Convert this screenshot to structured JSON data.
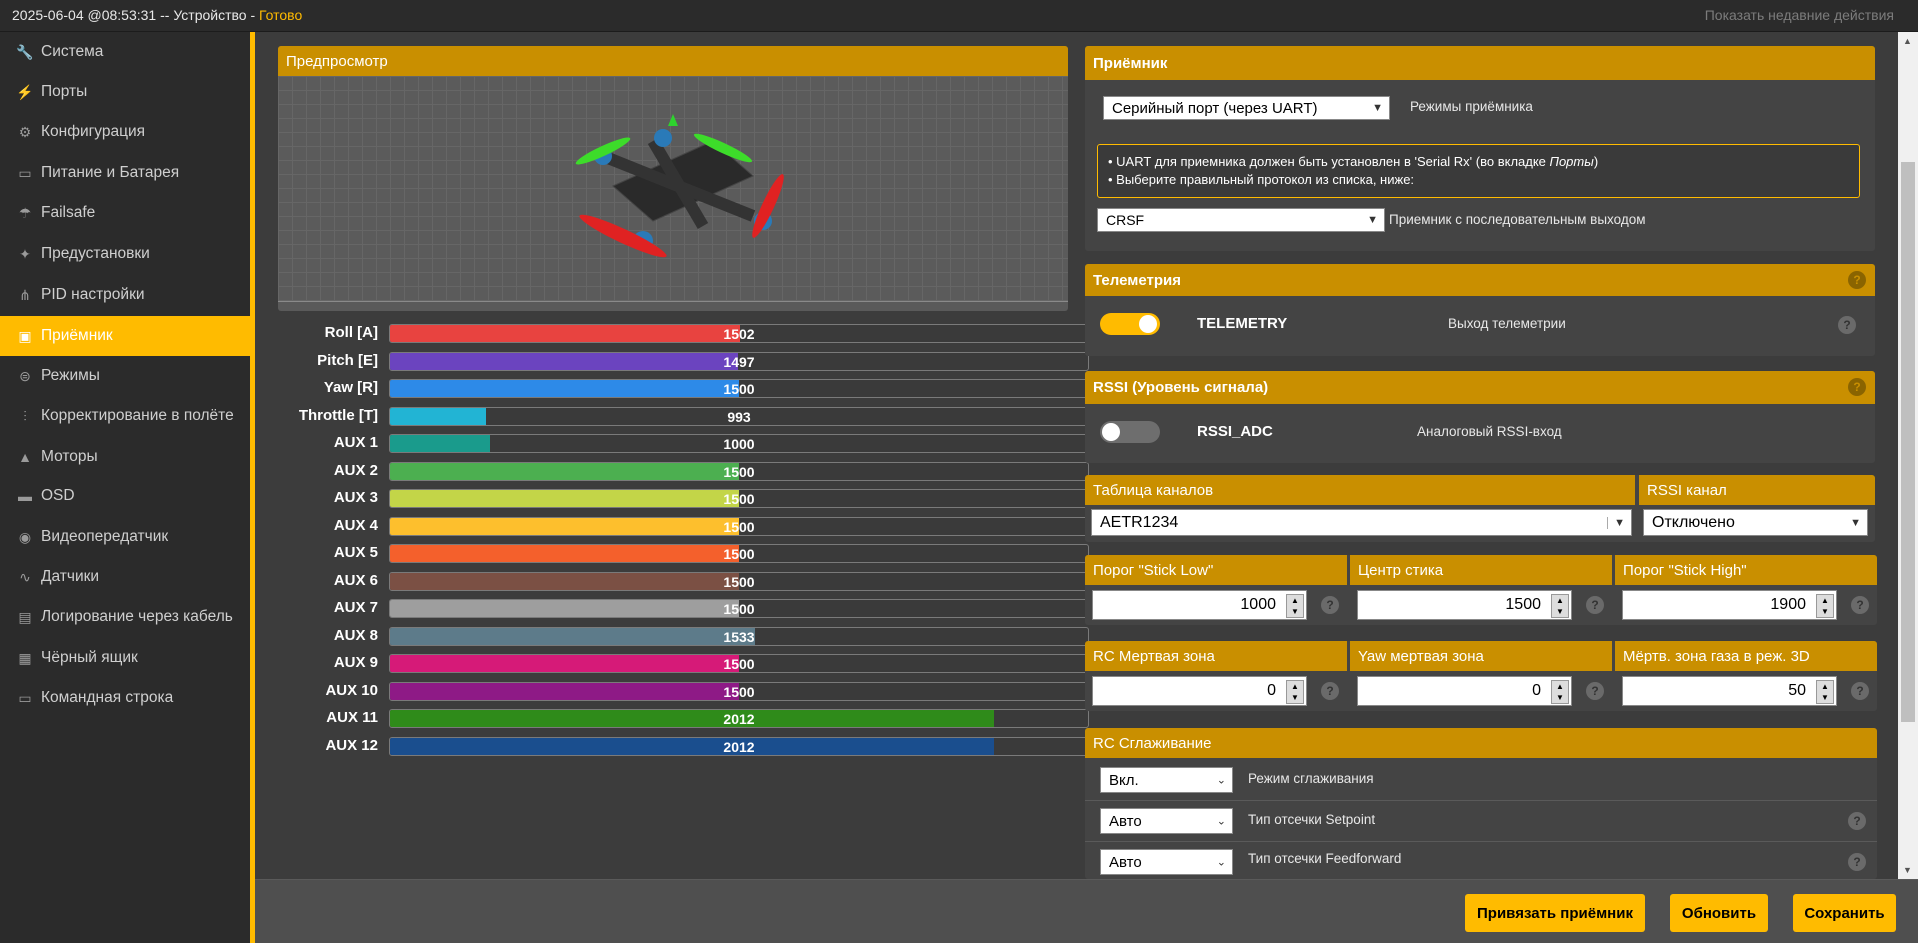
{
  "topbar": {
    "date": "2025-06-04 @08:53:31",
    "sep": " -- Устройство - ",
    "status": "Готово",
    "recent": "Показать недавние действия"
  },
  "colors": {
    "accent": "#ffbb00",
    "header": "#c98f00",
    "sidebar": "#2b2b2b",
    "content": "#3c3c3c"
  },
  "sidebar": {
    "items": [
      {
        "label": "Система",
        "icon": "wrench-icon",
        "glyph": "🔧"
      },
      {
        "label": "Порты",
        "icon": "plug-icon",
        "glyph": "⚡"
      },
      {
        "label": "Конфигурация",
        "icon": "gear-icon",
        "glyph": "⚙"
      },
      {
        "label": "Питание и Батарея",
        "icon": "battery-icon",
        "glyph": "▭"
      },
      {
        "label": "Failsafe",
        "icon": "parachute-icon",
        "glyph": "☂"
      },
      {
        "label": "Предустановки",
        "icon": "wand-icon",
        "glyph": "✦"
      },
      {
        "label": "PID настройки",
        "icon": "sitemap-icon",
        "glyph": "⋔"
      },
      {
        "label": "Приёмник",
        "icon": "receiver-icon",
        "glyph": "▣",
        "active": true
      },
      {
        "label": "Режимы",
        "icon": "toggle-icon",
        "glyph": "⊜"
      },
      {
        "label": "Корректирование в полёте",
        "icon": "sliders-icon",
        "glyph": "⫶"
      },
      {
        "label": "Моторы",
        "icon": "motor-icon",
        "glyph": "▲"
      },
      {
        "label": "OSD",
        "icon": "osd-icon",
        "glyph": "▬"
      },
      {
        "label": "Видеопередатчик",
        "icon": "broadcast-icon",
        "glyph": "◉"
      },
      {
        "label": "Датчики",
        "icon": "pulse-icon",
        "glyph": "∿"
      },
      {
        "label": "Логирование через кабель",
        "icon": "log-icon",
        "glyph": "▤"
      },
      {
        "label": "Чёрный ящик",
        "icon": "blackbox-icon",
        "glyph": "▦"
      },
      {
        "label": "Командная строка",
        "icon": "terminal-icon",
        "glyph": "▭"
      }
    ]
  },
  "preview": {
    "title": "Предпросмотр"
  },
  "channels": [
    {
      "name": "Roll [A]",
      "value": 1502,
      "color": "#e84340"
    },
    {
      "name": "Pitch [E]",
      "value": 1497,
      "color": "#6b44bf"
    },
    {
      "name": "Yaw [R]",
      "value": 1500,
      "color": "#2d8ae8"
    },
    {
      "name": "Throttle [T]",
      "value": 993,
      "color": "#22b4d4"
    },
    {
      "name": "AUX 1",
      "value": 1000,
      "color": "#1a9b8c"
    },
    {
      "name": "AUX 2",
      "value": 1500,
      "color": "#4caf50"
    },
    {
      "name": "AUX 3",
      "value": 1500,
      "color": "#c3d548"
    },
    {
      "name": "AUX 4",
      "value": 1500,
      "color": "#fdbf2d"
    },
    {
      "name": "AUX 5",
      "value": 1500,
      "color": "#f4602c"
    },
    {
      "name": "AUX 6",
      "value": 1500,
      "color": "#7b5044"
    },
    {
      "name": "AUX 7",
      "value": 1500,
      "color": "#9e9e9e"
    },
    {
      "name": "AUX 8",
      "value": 1533,
      "color": "#5d7b8a"
    },
    {
      "name": "AUX 9",
      "value": 1500,
      "color": "#d61a78"
    },
    {
      "name": "AUX 10",
      "value": 1500,
      "color": "#8e1a86"
    },
    {
      "name": "AUX 11",
      "value": 2012,
      "color": "#2f8b1a"
    },
    {
      "name": "AUX 12",
      "value": 2012,
      "color": "#1a4e8e"
    }
  ],
  "receiver": {
    "title": "Приёмник",
    "mode_value": "Серийный порт (через UART)",
    "mode_label": "Режимы приёмника",
    "note1_pre": "• UART для приемника должен быть установлен в 'Serial Rx' (во вкладке ",
    "note1_em": "Порты",
    "note1_post": ")",
    "note2": "• Выберите правильный протокол из списка, ниже:",
    "protocol_value": "CRSF",
    "protocol_label": "Приемник с последовательным выходом"
  },
  "telemetry": {
    "title": "Телеметрия",
    "name": "TELEMETRY",
    "desc": "Выход телеметрии",
    "enabled": true
  },
  "rssi": {
    "title": "RSSI (Уровень сигнала)",
    "name": "RSSI_ADC",
    "desc": "Аналоговый RSSI-вход",
    "enabled": false
  },
  "channel_map": {
    "title": "Таблица каналов",
    "value": "AETR1234",
    "rssi_title": "RSSI канал",
    "rssi_value": "Отключено"
  },
  "stick": {
    "low_title": "Порог \"Stick Low\"",
    "low": "1000",
    "center_title": "Центр стика",
    "center": "1500",
    "high_title": "Порог \"Stick High\"",
    "high": "1900"
  },
  "deadband": {
    "rc_title": "RC Мертвая зона",
    "rc": "0",
    "yaw_title": "Yaw мертвая зона",
    "yaw": "0",
    "throttle_title": "Мёртв. зона газа в реж. 3D",
    "throttle": "50"
  },
  "smoothing": {
    "title": "RC Сглаживание",
    "rows": [
      {
        "value": "Вкл.",
        "label": "Режим сглаживания"
      },
      {
        "value": "Авто",
        "label": "Тип отсечки Setpoint"
      },
      {
        "value": "Авто",
        "label": "Тип отсечки Feedforward"
      }
    ]
  },
  "footer": {
    "bind": "Привязать приёмник",
    "refresh": "Обновить",
    "save": "Сохранить"
  },
  "help": "?"
}
